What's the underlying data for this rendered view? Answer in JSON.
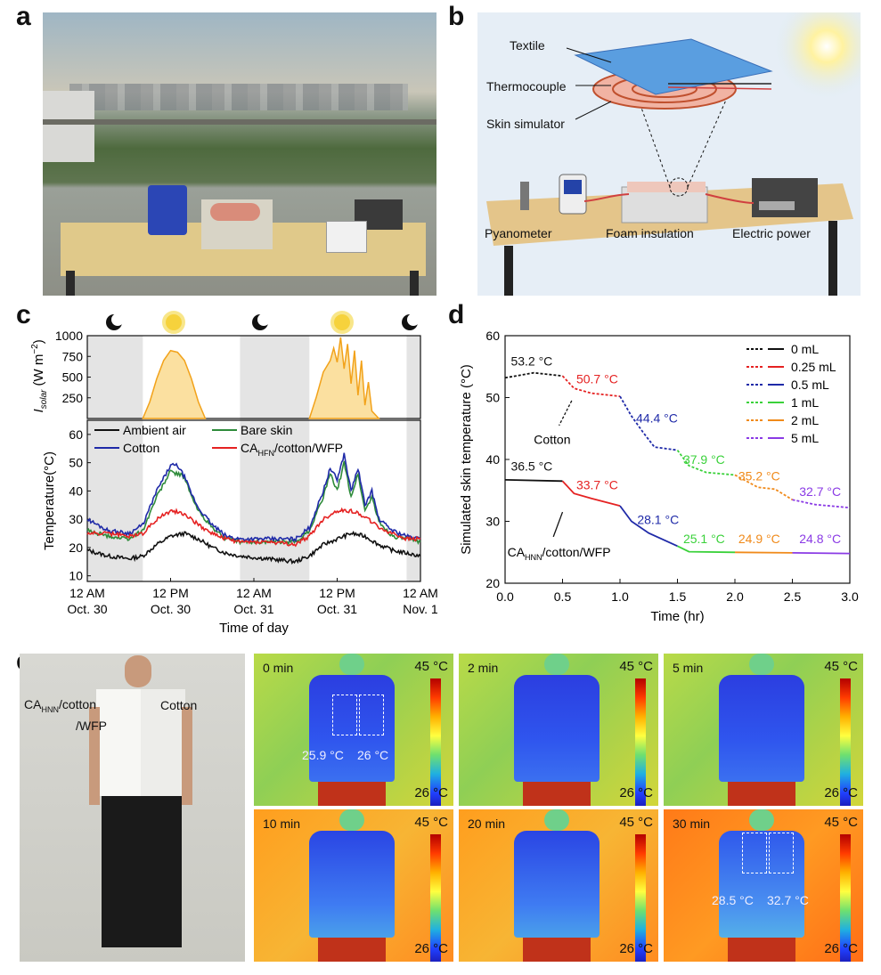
{
  "panels": {
    "a": "a",
    "b": "b",
    "c": "c",
    "d": "d",
    "e": "e"
  },
  "panel_b": {
    "labels": [
      "Textile",
      "Thermocouple",
      "Skin simulator",
      "Pyanometer",
      "Foam insulation",
      "Electric power"
    ]
  },
  "panel_e": {
    "shirt_left": "CA",
    "shirt_left_sub": "HNN",
    "shirt_left_rest": "/cotton",
    "shirt_left_line2": "/WFP",
    "shirt_right": "Cotton",
    "scale_max": "45 °C",
    "scale_min": "26 °C",
    "frames": [
      {
        "time": "0 min",
        "left": "25.9 °C",
        "right": "26 °C",
        "body": "cool"
      },
      {
        "time": "2 min",
        "left": "",
        "right": "",
        "body": "cool"
      },
      {
        "time": "5 min",
        "left": "",
        "right": "",
        "body": "cool"
      },
      {
        "time": "10 min",
        "left": "",
        "right": "",
        "body": "mid"
      },
      {
        "time": "20 min",
        "left": "",
        "right": "",
        "body": "mid"
      },
      {
        "time": "30 min",
        "left": "28.5 °C",
        "right": "32.7 °C",
        "body": "warm"
      }
    ],
    "colors": {
      "bg_warm": "#ff8a1c",
      "bg_cool": "#b7d94a",
      "body": "#1a3ad8"
    }
  },
  "chart_data": [
    {
      "id": "c-solar",
      "type": "area",
      "ylabel_main": "I",
      "ylabel_sub": "solar",
      "ylabel_unit": " (W m",
      "ylabel_sup": "−2",
      "ylabel_close": ")",
      "yticks": [
        250,
        500,
        750,
        1000
      ],
      "ylim": [
        0,
        1000
      ],
      "xlim": [
        0,
        72
      ],
      "icons": [
        "moon",
        "sun",
        "moon",
        "sun",
        "moon"
      ],
      "color": "#f2a21a",
      "shaded_intervals": [
        [
          0,
          8
        ],
        [
          22,
          32
        ],
        [
          46,
          56
        ],
        [
          68,
          72
        ]
      ],
      "series_day1": [
        [
          8,
          0
        ],
        [
          9,
          200
        ],
        [
          10,
          480
        ],
        [
          11,
          700
        ],
        [
          12,
          820
        ],
        [
          13,
          800
        ],
        [
          14,
          700
        ],
        [
          15,
          480
        ],
        [
          16,
          200
        ],
        [
          17,
          0
        ]
      ],
      "series_day2": [
        [
          32,
          0
        ],
        [
          33,
          260
        ],
        [
          34,
          560
        ],
        [
          35,
          700
        ],
        [
          35.5,
          850
        ],
        [
          36,
          680
        ],
        [
          36.5,
          980
        ],
        [
          37,
          600
        ],
        [
          37.5,
          900
        ],
        [
          38,
          420
        ],
        [
          38.5,
          820
        ],
        [
          39,
          280
        ],
        [
          39.5,
          700
        ],
        [
          40,
          160
        ],
        [
          40.5,
          440
        ],
        [
          41,
          90
        ],
        [
          42,
          0
        ]
      ]
    },
    {
      "id": "c-temp",
      "type": "line",
      "ylabel": "Temperature(°C)",
      "xlabel": "Time of day",
      "ylim": [
        8,
        65
      ],
      "yticks": [
        10,
        20,
        30,
        40,
        50,
        60
      ],
      "xlim": [
        0,
        72
      ],
      "xticks": [
        {
          "x": 0,
          "l1": "12 AM",
          "l2": "Oct. 30"
        },
        {
          "x": 12,
          "l1": "12 PM",
          "l2": "Oct. 30"
        },
        {
          "x": 24,
          "l1": "12 AM",
          "l2": "Oct. 31"
        },
        {
          "x": 36,
          "l1": "12 PM",
          "l2": "Oct. 31"
        },
        {
          "x": 48,
          "l1": "12 AM",
          "l2": "Nov. 1"
        }
      ],
      "legend": [
        {
          "name": "Ambient air",
          "color": "#111111"
        },
        {
          "name": "Bare skin",
          "color": "#2e8b3a"
        },
        {
          "name": "Cotton",
          "color": "#1f2aa8"
        },
        {
          "name": "CA",
          "sub": "HFN",
          "rest": "/cotton/WFP",
          "color": "#e52222"
        }
      ],
      "series": [
        {
          "key": "ambient",
          "color": "#111111",
          "points": [
            [
              0,
              19
            ],
            [
              3,
              17
            ],
            [
              6,
              16
            ],
            [
              8,
              17
            ],
            [
              10,
              21
            ],
            [
              12,
              24
            ],
            [
              14,
              25
            ],
            [
              16,
              23
            ],
            [
              18,
              20
            ],
            [
              20,
              18
            ],
            [
              22,
              17
            ],
            [
              26,
              16
            ],
            [
              30,
              15
            ],
            [
              32,
              17
            ],
            [
              34,
              21
            ],
            [
              36,
              23
            ],
            [
              38,
              25
            ],
            [
              40,
              24
            ],
            [
              42,
              21
            ],
            [
              44,
              19
            ],
            [
              46,
              18
            ],
            [
              48,
              17
            ]
          ]
        },
        {
          "key": "bare",
          "color": "#2e8b3a",
          "points": [
            [
              0,
              26
            ],
            [
              3,
              24
            ],
            [
              6,
              23
            ],
            [
              8,
              26
            ],
            [
              10,
              38
            ],
            [
              12,
              47
            ],
            [
              14,
              45
            ],
            [
              15,
              38
            ],
            [
              16,
              33
            ],
            [
              18,
              27
            ],
            [
              20,
              23
            ],
            [
              22,
              22
            ],
            [
              26,
              22
            ],
            [
              30,
              22
            ],
            [
              32,
              26
            ],
            [
              34,
              38
            ],
            [
              35,
              46
            ],
            [
              36,
              40
            ],
            [
              37,
              50
            ],
            [
              38,
              38
            ],
            [
              39,
              46
            ],
            [
              40,
              33
            ],
            [
              41,
              38
            ],
            [
              42,
              29
            ],
            [
              44,
              24
            ],
            [
              46,
              23
            ],
            [
              48,
              22
            ]
          ]
        },
        {
          "key": "cotton",
          "color": "#1f2aa8",
          "points": [
            [
              0,
              30
            ],
            [
              3,
              26
            ],
            [
              6,
              25
            ],
            [
              8,
              28
            ],
            [
              10,
              40
            ],
            [
              12,
              49
            ],
            [
              13,
              49
            ],
            [
              14,
              45
            ],
            [
              15,
              39
            ],
            [
              16,
              34
            ],
            [
              18,
              28
            ],
            [
              20,
              24
            ],
            [
              22,
              23
            ],
            [
              26,
              23
            ],
            [
              30,
              23
            ],
            [
              32,
              27
            ],
            [
              34,
              40
            ],
            [
              35,
              48
            ],
            [
              36,
              44
            ],
            [
              37,
              53
            ],
            [
              38,
              40
            ],
            [
              39,
              48
            ],
            [
              40,
              35
            ],
            [
              41,
              40
            ],
            [
              42,
              30
            ],
            [
              44,
              26
            ],
            [
              46,
              24
            ],
            [
              48,
              23
            ]
          ]
        },
        {
          "key": "ca",
          "color": "#e52222",
          "points": [
            [
              0,
              25
            ],
            [
              3,
              25
            ],
            [
              6,
              24
            ],
            [
              8,
              25
            ],
            [
              10,
              30
            ],
            [
              12,
              33
            ],
            [
              14,
              32
            ],
            [
              16,
              28
            ],
            [
              18,
              25
            ],
            [
              20,
              23
            ],
            [
              22,
              22
            ],
            [
              26,
              22
            ],
            [
              30,
              21
            ],
            [
              32,
              24
            ],
            [
              34,
              30
            ],
            [
              36,
              33
            ],
            [
              38,
              33
            ],
            [
              40,
              31
            ],
            [
              42,
              27
            ],
            [
              44,
              25
            ],
            [
              46,
              23
            ],
            [
              48,
              23
            ]
          ]
        }
      ],
      "shaded_intervals": [
        [
          0,
          8
        ],
        [
          22,
          32
        ],
        [
          46,
          48
        ]
      ]
    },
    {
      "id": "d",
      "type": "line",
      "ylabel": "Simulated skin temperature (°C)",
      "xlabel": "Time (hr)",
      "xlim": [
        0,
        3.0
      ],
      "ylim": [
        20,
        60
      ],
      "xticks": [
        0.0,
        0.5,
        1.0,
        1.5,
        2.0,
        2.5,
        3.0
      ],
      "yticks": [
        20,
        30,
        40,
        50,
        60
      ],
      "legend": [
        {
          "name": "0 mL",
          "color": "#111111"
        },
        {
          "name": "0.25 mL",
          "color": "#e52222"
        },
        {
          "name": "0.5 mL",
          "color": "#1f2aa8"
        },
        {
          "name": "1 mL",
          "color": "#3ad13a"
        },
        {
          "name": "2 mL",
          "color": "#f08a1a"
        },
        {
          "name": "5 mL",
          "color": "#8a3ae5"
        }
      ],
      "cotton_series": [
        {
          "color": "#111111",
          "points": [
            [
              0,
              53.2
            ],
            [
              0.25,
              54
            ],
            [
              0.5,
              53.5
            ]
          ]
        },
        {
          "color": "#e52222",
          "points": [
            [
              0.5,
              53.5
            ],
            [
              0.6,
              51.5
            ],
            [
              0.75,
              50.7
            ],
            [
              1.0,
              50.2
            ]
          ]
        },
        {
          "color": "#1f2aa8",
          "points": [
            [
              1.0,
              50.2
            ],
            [
              1.1,
              47
            ],
            [
              1.2,
              44.4
            ],
            [
              1.3,
              42
            ],
            [
              1.5,
              41.5
            ]
          ]
        },
        {
          "color": "#3ad13a",
          "points": [
            [
              1.5,
              41.5
            ],
            [
              1.6,
              39
            ],
            [
              1.75,
              37.9
            ],
            [
              2.0,
              37.5
            ]
          ]
        },
        {
          "color": "#f08a1a",
          "points": [
            [
              2.0,
              37.5
            ],
            [
              2.2,
              35.5
            ],
            [
              2.35,
              35.2
            ],
            [
              2.5,
              33.5
            ]
          ]
        },
        {
          "color": "#8a3ae5",
          "points": [
            [
              2.5,
              33.5
            ],
            [
              2.7,
              32.7
            ],
            [
              3.0,
              32.2
            ]
          ]
        }
      ],
      "ca_series": [
        {
          "color": "#111111",
          "points": [
            [
              0,
              36.7
            ],
            [
              0.5,
              36.5
            ]
          ]
        },
        {
          "color": "#e52222",
          "points": [
            [
              0.5,
              36.5
            ],
            [
              0.6,
              34.5
            ],
            [
              0.75,
              33.7
            ],
            [
              1.0,
              32.5
            ]
          ]
        },
        {
          "color": "#1f2aa8",
          "points": [
            [
              1.0,
              32.5
            ],
            [
              1.1,
              30
            ],
            [
              1.25,
              28.1
            ],
            [
              1.5,
              26
            ]
          ]
        },
        {
          "color": "#3ad13a",
          "points": [
            [
              1.5,
              26
            ],
            [
              1.6,
              25.1
            ],
            [
              2.0,
              25.0
            ]
          ]
        },
        {
          "color": "#f08a1a",
          "points": [
            [
              2.0,
              25.0
            ],
            [
              2.5,
              24.9
            ]
          ]
        },
        {
          "color": "#8a3ae5",
          "points": [
            [
              2.5,
              24.9
            ],
            [
              3.0,
              24.8
            ]
          ]
        }
      ],
      "annotations": [
        {
          "text": "53.2 °C",
          "x": 0.05,
          "y": 55.2,
          "color": "#111111"
        },
        {
          "text": "50.7 °C",
          "x": 0.62,
          "y": 52.3,
          "color": "#e52222"
        },
        {
          "text": "44.4 °C",
          "x": 1.14,
          "y": 46.0,
          "color": "#1f2aa8"
        },
        {
          "text": "37.9 °C",
          "x": 1.55,
          "y": 39.3,
          "color": "#3ad13a"
        },
        {
          "text": "35.2 °C",
          "x": 2.03,
          "y": 36.6,
          "color": "#f08a1a"
        },
        {
          "text": "32.7 °C",
          "x": 2.56,
          "y": 34.1,
          "color": "#8a3ae5"
        },
        {
          "text": "36.5 °C",
          "x": 0.05,
          "y": 38.2,
          "color": "#111111"
        },
        {
          "text": "33.7 °C",
          "x": 0.62,
          "y": 35.2,
          "color": "#e52222"
        },
        {
          "text": "28.1 °C",
          "x": 1.15,
          "y": 29.6,
          "color": "#1f2aa8"
        },
        {
          "text": "25.1 °C",
          "x": 1.55,
          "y": 26.5,
          "color": "#3ad13a"
        },
        {
          "text": "24.9 °C",
          "x": 2.03,
          "y": 26.5,
          "color": "#f08a1a"
        },
        {
          "text": "24.8 °C",
          "x": 2.56,
          "y": 26.5,
          "color": "#8a3ae5"
        }
      ],
      "label_cotton": "Cotton",
      "label_ca": "CA",
      "label_ca_sub": "HNN",
      "label_ca_rest": "/cotton/WFP"
    }
  ]
}
